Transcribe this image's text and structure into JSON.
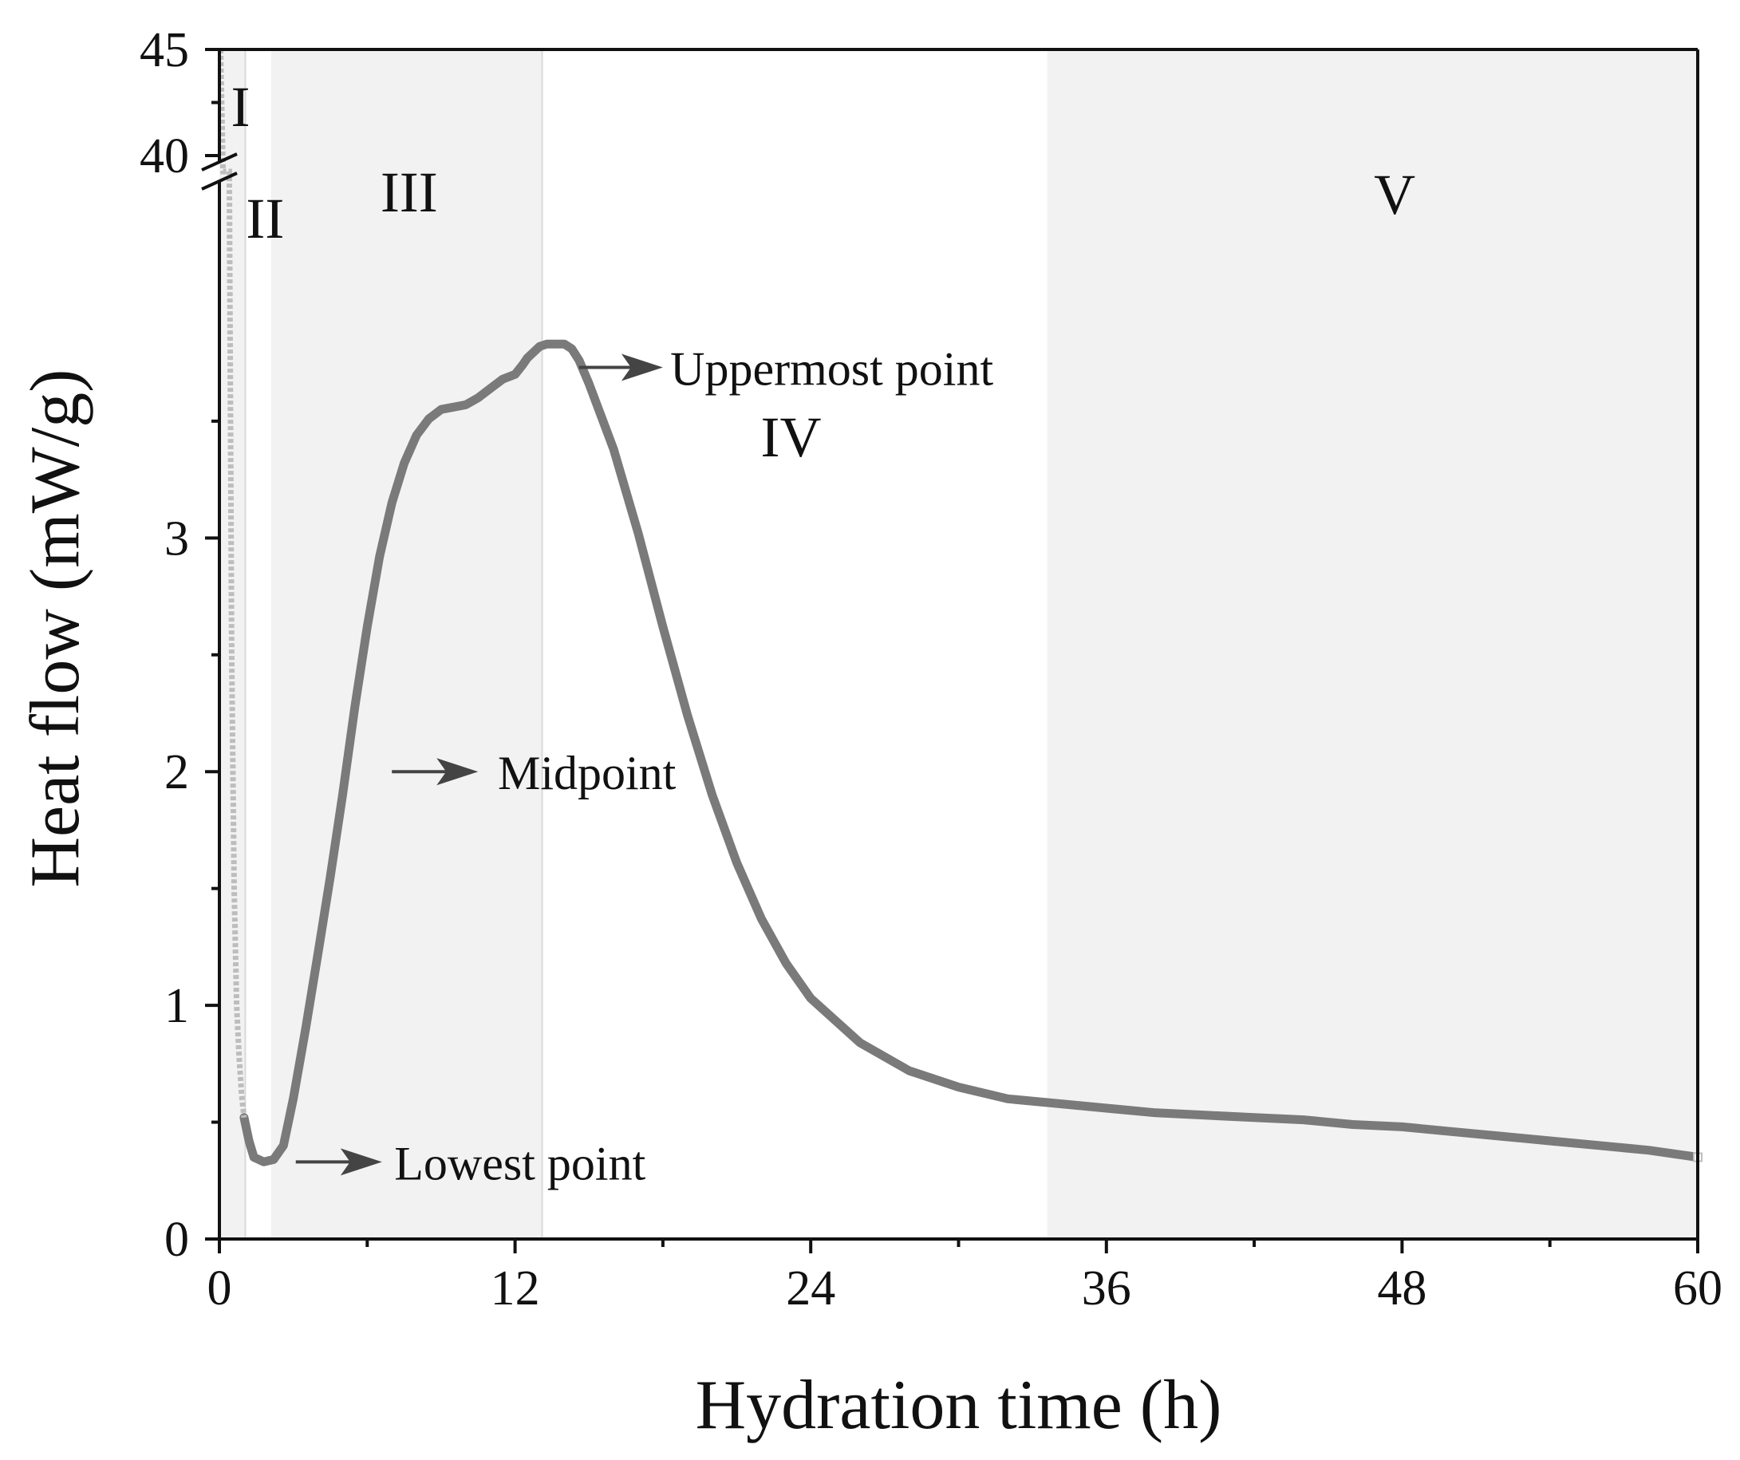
{
  "chart_data": {
    "type": "line",
    "title": "",
    "xlabel": "Hydration time (h)",
    "ylabel": "Heat flow (mW/g)",
    "xlim": [
      0,
      60
    ],
    "ylim_lower": [
      0,
      4.5
    ],
    "ylim_upper": [
      40,
      45
    ],
    "y_axis_break": true,
    "x_ticks": [
      0,
      12,
      24,
      36,
      48,
      60
    ],
    "x_tick_labels": [
      "0",
      "12",
      "24",
      "36",
      "48",
      "60"
    ],
    "y_ticks_lower": [
      0,
      1,
      2,
      3
    ],
    "y_tick_labels_lower": [
      "0",
      "1",
      "2",
      "3"
    ],
    "y_ticks_upper": [
      40,
      45
    ],
    "y_tick_labels_upper": [
      "40",
      "45"
    ],
    "grid": false,
    "legend": "none",
    "colors": {
      "curve": "#7a7a7a",
      "initial_markers": "#bdbdbd",
      "stage_shade": "#f2f2f2",
      "stage_border": "#d9d9d9",
      "arrow": "#444444",
      "axis": "#111111"
    },
    "stages": [
      {
        "label": "I",
        "x_start": 0,
        "x_end": 1.05,
        "shaded": true
      },
      {
        "label": "II",
        "x_start": 1.05,
        "x_end": 2.1,
        "shaded": false
      },
      {
        "label": "III",
        "x_start": 2.1,
        "x_end": 13.1,
        "shaded": true
      },
      {
        "label": "IV",
        "x_start": 13.1,
        "x_end": 33.6,
        "shaded": false
      },
      {
        "label": "V",
        "x_start": 33.6,
        "x_end": 60,
        "shaded": true
      }
    ],
    "annotations": [
      {
        "text": "Uppermost point",
        "x": 13.5,
        "y": 3.73
      },
      {
        "text": "Midpoint",
        "x": 6.9,
        "y": 2.0
      },
      {
        "text": "Lowest point",
        "x": 1.7,
        "y": 0.33
      }
    ],
    "series": [
      {
        "name": "Heat flow",
        "x": [
          0.05,
          0.1,
          0.15,
          0.2,
          0.3,
          0.4,
          0.5,
          0.6,
          0.7,
          0.8,
          0.9,
          1.0,
          1.2,
          1.4,
          1.8,
          2.2,
          2.6,
          3.0,
          3.5,
          4.0,
          4.5,
          5.0,
          5.5,
          6.0,
          6.5,
          7.0,
          7.5,
          8.0,
          8.5,
          9.0,
          9.5,
          10.0,
          10.5,
          11.0,
          11.5,
          12.0,
          12.3,
          12.5,
          12.8,
          13.0,
          13.3,
          13.6,
          14.0,
          14.3,
          14.6,
          15.0,
          16.0,
          17.0,
          18.0,
          19.0,
          20.0,
          21.0,
          22.0,
          23.0,
          24.0,
          26.0,
          28.0,
          30.0,
          32.0,
          34.0,
          36.0,
          38.0,
          40.0,
          42.0,
          44.0,
          46.0,
          48.0,
          50.0,
          52.0,
          54.0,
          56.0,
          58.0,
          60.0
        ],
        "y": [
          45.0,
          42.0,
          36.0,
          26.0,
          12.0,
          5.0,
          2.5,
          1.5,
          1.0,
          0.78,
          0.62,
          0.52,
          0.42,
          0.35,
          0.33,
          0.34,
          0.4,
          0.6,
          0.9,
          1.22,
          1.55,
          1.9,
          2.28,
          2.62,
          2.92,
          3.15,
          3.32,
          3.44,
          3.51,
          3.55,
          3.56,
          3.57,
          3.6,
          3.64,
          3.68,
          3.7,
          3.74,
          3.77,
          3.8,
          3.82,
          3.83,
          3.83,
          3.83,
          3.81,
          3.76,
          3.66,
          3.38,
          3.02,
          2.62,
          2.24,
          1.9,
          1.61,
          1.37,
          1.18,
          1.03,
          0.84,
          0.72,
          0.65,
          0.6,
          0.58,
          0.56,
          0.54,
          0.53,
          0.52,
          0.51,
          0.49,
          0.48,
          0.46,
          0.44,
          0.42,
          0.4,
          0.38,
          0.35
        ]
      }
    ]
  }
}
